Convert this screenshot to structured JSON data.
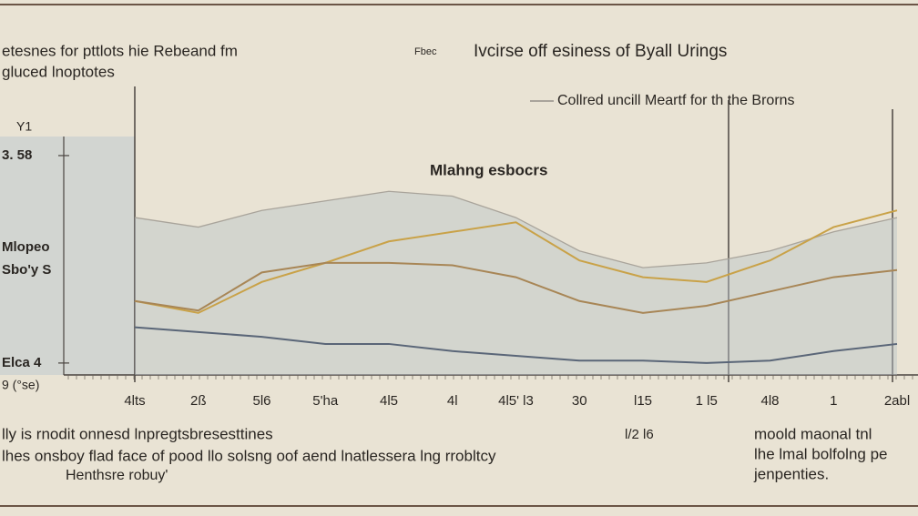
{
  "chart_data": {
    "type": "line",
    "title": "Ivcirse off esiness of Byall Urings",
    "subtitle": "etesnes for pttlots hie Rebeand fm",
    "subtitle2": "gluced lnoptotes",
    "tag": "Fbec",
    "y_label": "Y1",
    "annotations": [
      "Mlahng esbocrs",
      "Mlopeo",
      "Sbo'y S",
      "9 (°se)",
      "lly is rnodit onnesd lnpregtsbresesttines",
      "lhes onsboy flad face of pood llo solsng oof aend lnatlessera lng rrobltcy",
      "Henthsre robuy'",
      "l/2 l6",
      "moold maonal tnl",
      "lhe lmal bolfolng pe",
      "jenpenties."
    ],
    "categories": [
      "4lts",
      "2ß",
      "5l6",
      "5'ha",
      "4l5",
      "4l",
      "4l5' l3",
      "30",
      "l15",
      "1 l5",
      "4l8",
      "1",
      "2abl"
    ],
    "ylim": [
      0,
      10
    ],
    "yticks": [
      {
        "value": 9.2,
        "label": "3. 58"
      },
      {
        "value": 0.5,
        "label": "Elca 4"
      }
    ],
    "legend": "top-right",
    "series": [
      {
        "name": "Collred uncill Meartf for th the Brorns",
        "color": "#a9a49b",
        "values": [
          6.6,
          6.2,
          6.9,
          7.3,
          7.7,
          7.5,
          6.6,
          5.2,
          4.5,
          4.7,
          5.2,
          6.0,
          6.6
        ]
      },
      {
        "name": "",
        "color": "#c9a248",
        "values": [
          3.1,
          2.6,
          3.9,
          4.7,
          5.6,
          6.0,
          6.4,
          4.8,
          4.1,
          3.9,
          4.8,
          6.2,
          6.9
        ]
      },
      {
        "name": "",
        "color": "#a88656",
        "values": [
          3.1,
          2.7,
          4.3,
          4.7,
          4.7,
          4.6,
          4.1,
          3.1,
          2.6,
          2.9,
          3.5,
          4.1,
          4.4
        ]
      },
      {
        "name": "",
        "color": "#5a6678",
        "values": [
          2.0,
          1.8,
          1.6,
          1.3,
          1.3,
          1.0,
          0.8,
          0.6,
          0.6,
          0.5,
          0.6,
          1.0,
          1.3
        ]
      }
    ]
  }
}
